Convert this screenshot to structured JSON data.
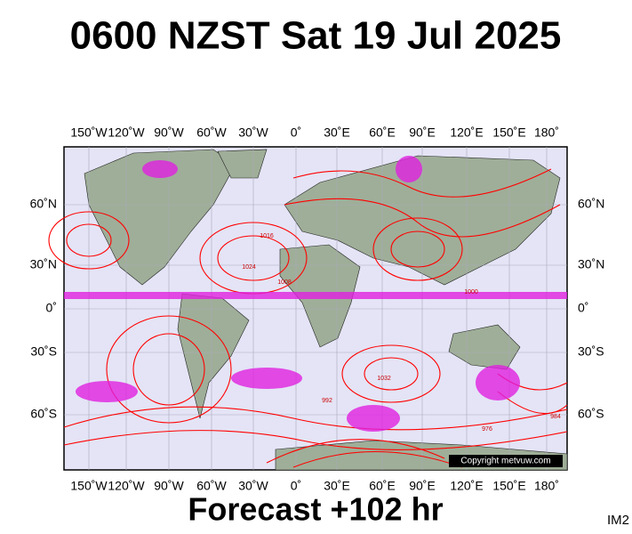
{
  "header": {
    "title": "0600 NZST Sat 19 Jul 2025"
  },
  "map": {
    "longitudes": [
      "150˚W",
      "120˚W",
      "90˚W",
      "60˚W",
      "30˚W",
      "0˚",
      "30˚E",
      "60˚E",
      "90˚E",
      "120˚E",
      "150˚E",
      "180˚"
    ],
    "latitudes": [
      "60˚N",
      "30˚N",
      "0˚",
      "30˚S",
      "60˚S"
    ],
    "isobar_labels": [
      "1024",
      "1016",
      "1008",
      "1000",
      "1032",
      "992",
      "976",
      "984"
    ],
    "copyright": "Copyright metvuw.com"
  },
  "footer": {
    "forecast": "Forecast +102 hr",
    "image_id": "IM2"
  }
}
